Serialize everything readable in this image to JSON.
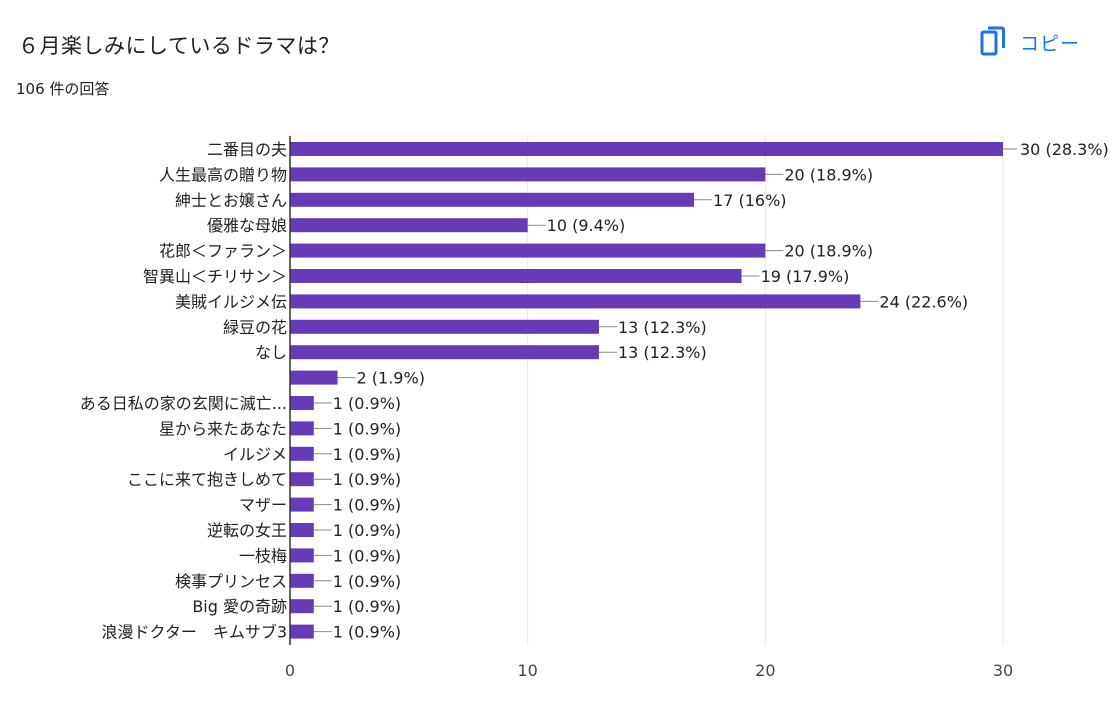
{
  "question": {
    "title": "６月楽しみにしているドラマは？",
    "response_count": "106 件の回答"
  },
  "toolbar": {
    "copy_label": "コピー",
    "copy_icon": "copy-icon"
  },
  "colors": {
    "bar": "#673ab7",
    "accent": "#1a73e8",
    "grid": "#e8e8e8",
    "axis": "#333333"
  },
  "chart_data": {
    "type": "bar",
    "orientation": "horizontal",
    "categories": [
      "二番目の夫",
      "人生最高の贈り物",
      "紳士とお嬢さん",
      "優雅な母娘",
      "花郎＜ファラン＞",
      "智異山＜チリサン＞",
      "美賊イルジメ伝",
      "緑豆の花",
      "なし",
      "",
      "ある日私の家の玄関に滅亡...",
      "星から来たあなた",
      "イルジメ",
      "ここに来て抱きしめて",
      "マザー",
      "逆転の女王",
      "一枝梅",
      "検事プリンセス",
      "Big 愛の奇跡",
      "浪漫ドクター　キムサブ3"
    ],
    "values": [
      30,
      20,
      17,
      10,
      20,
      19,
      24,
      13,
      13,
      2,
      1,
      1,
      1,
      1,
      1,
      1,
      1,
      1,
      1,
      1
    ],
    "data_labels": [
      "30 (28.3%)",
      "20 (18.9%)",
      "17 (16%)",
      "10 (9.4%)",
      "20 (18.9%)",
      "19 (17.9%)",
      "24 (22.6%)",
      "13 (12.3%)",
      "13 (12.3%)",
      "2 (1.9%)",
      "1 (0.9%)",
      "1 (0.9%)",
      "1 (0.9%)",
      "1 (0.9%)",
      "1 (0.9%)",
      "1 (0.9%)",
      "1 (0.9%)",
      "1 (0.9%)",
      "1 (0.9%)",
      "1 (0.9%)"
    ],
    "x_ticks": [
      "0",
      "10",
      "20",
      "30"
    ],
    "xlim": [
      0,
      30
    ],
    "grid": true,
    "legend": "none"
  }
}
